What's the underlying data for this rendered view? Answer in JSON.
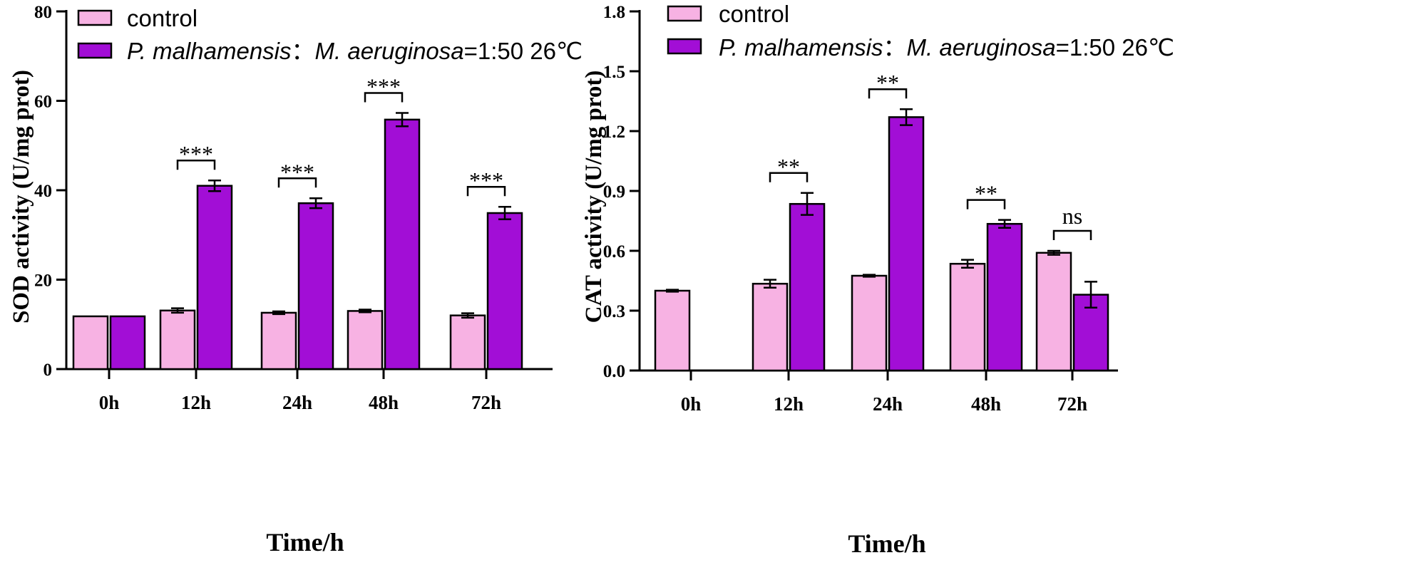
{
  "legend": {
    "control": "control",
    "treatment_species_1": "P. malhamensis",
    "treatment_sep": "：",
    "treatment_species_2": "M. aeruginosa",
    "treatment_ratio": "=1:50 26℃"
  },
  "colors": {
    "control": "#f7b2e3",
    "treatment": "#a20ed6",
    "axis": "#000000"
  },
  "chart_data": [
    {
      "type": "bar",
      "title": "",
      "ylabel": "SOD activity (U/mg prot)",
      "xlabel": "Time/h",
      "categories": [
        "0h",
        "12h",
        "24h",
        "48h",
        "72h"
      ],
      "ylim": [
        0,
        80
      ],
      "yticks": [
        0,
        20,
        40,
        60,
        80
      ],
      "ytick_labels": [
        "0",
        "20",
        "40",
        "60",
        "80"
      ],
      "series": [
        {
          "name": "control",
          "values": [
            11.8,
            13.1,
            12.6,
            13.0,
            12.0
          ],
          "errors": [
            0.0,
            0.5,
            0.3,
            0.3,
            0.5
          ]
        },
        {
          "name": "P. malhamensis：M. aeruginosa=1:50 26℃",
          "values": [
            11.8,
            41.0,
            37.1,
            55.8,
            34.9
          ],
          "errors": [
            0.0,
            1.2,
            1.1,
            1.5,
            1.4
          ]
        }
      ],
      "significance": [
        "",
        "***",
        "***",
        "***",
        "***"
      ]
    },
    {
      "type": "bar",
      "title": "",
      "ylabel": "CAT activity (U/mg prot)",
      "xlabel": "Time/h",
      "categories": [
        "0h",
        "12h",
        "24h",
        "48h",
        "72h"
      ],
      "ylim": [
        0,
        1.8
      ],
      "yticks": [
        0,
        0.3,
        0.6,
        0.9,
        1.2,
        1.5,
        1.8
      ],
      "ytick_labels": [
        "0.0",
        "0.3",
        "0.6",
        "0.9",
        "1.2",
        "1.5",
        "1.8"
      ],
      "series": [
        {
          "name": "control",
          "values": [
            0.4,
            0.435,
            0.475,
            0.535,
            0.59
          ],
          "errors": [
            0.005,
            0.02,
            0.005,
            0.02,
            0.01
          ]
        },
        {
          "name": "P. malhamensis：M. aeruginosa=1:50 26℃",
          "values": [
            null,
            0.835,
            1.27,
            0.735,
            0.38
          ],
          "errors": [
            0,
            0.055,
            0.04,
            0.02,
            0.065
          ]
        }
      ],
      "significance": [
        "",
        "**",
        "**",
        "**",
        "ns"
      ]
    }
  ]
}
